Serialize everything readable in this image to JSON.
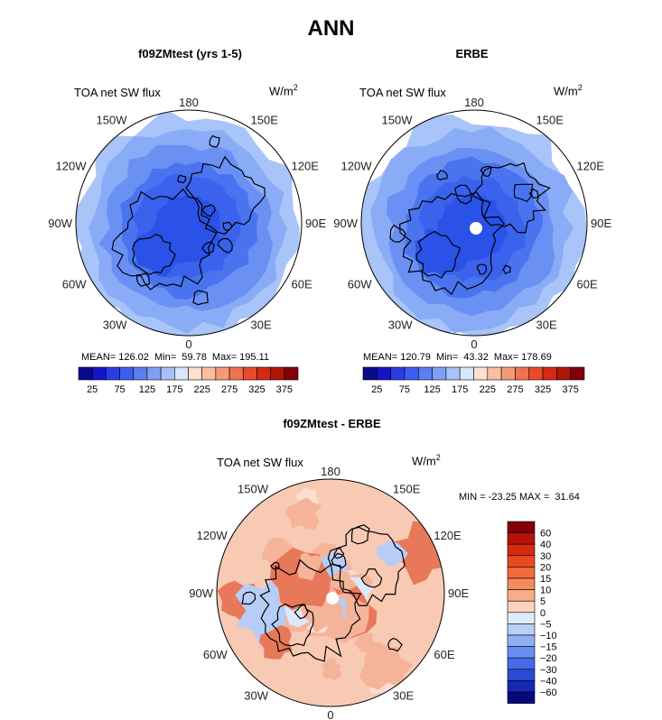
{
  "title": "ANN",
  "panels": [
    {
      "title": "f09ZMtest (yrs 1-5)",
      "variable": "TOA net SW flux",
      "units": "W/m",
      "units_sup": "2",
      "stats": "MEAN= 126.02  Min=  59.78  Max= 195.11"
    },
    {
      "title": "ERBE",
      "variable": "TOA net SW flux",
      "units": "W/m",
      "units_sup": "2",
      "stats": "MEAN= 120.79  Min=  43.32  Max= 178.69"
    },
    {
      "title": "f09ZMtest - ERBE",
      "variable": "TOA net SW flux",
      "units": "W/m",
      "units_sup": "2",
      "stats": "MIN = -23.25 MAX =  31.64"
    }
  ],
  "lon_labels": {
    "top": "180",
    "bottom": "0",
    "left": "90W",
    "right": "90E",
    "ul1": "150W",
    "ul2": "120W",
    "ll1": "60W",
    "ll2": "30W",
    "ur1": "150E",
    "ur2": "120E",
    "lr1": "60E",
    "lr2": "30E"
  },
  "abs_colorbar": {
    "ticks": [
      "25",
      "75",
      "125",
      "175",
      "225",
      "275",
      "325",
      "375"
    ],
    "colors": [
      "#0a0a8c",
      "#1414c8",
      "#2a3ee6",
      "#3c5ef0",
      "#5a7ff2",
      "#7fa0f5",
      "#a7c2f8",
      "#d8e6fb",
      "#fde0cf",
      "#f9bfa0",
      "#f59a78",
      "#f07250",
      "#e84a2a",
      "#d42a12",
      "#b01608",
      "#82000a"
    ]
  },
  "diff_colorbar": {
    "ticks": [
      "60",
      "40",
      "30",
      "20",
      "15",
      "10",
      "5",
      "0",
      "−5",
      "−10",
      "−15",
      "−20",
      "−30",
      "−40",
      "−60"
    ],
    "colors": [
      "#82000a",
      "#b5120a",
      "#d62a10",
      "#ea4a20",
      "#f26a3a",
      "#f58a5e",
      "#f7ad8a",
      "#fbd3bd",
      "#dfeafb",
      "#b8cff8",
      "#8fb0f4",
      "#6a8ff0",
      "#466ae9",
      "#2a4ad8",
      "#1528b0",
      "#08087e"
    ]
  },
  "maps": {
    "abs_palette": [
      "#2a52e8",
      "#3a62ec",
      "#4a74ef",
      "#6a90f3",
      "#8aacf6",
      "#a8c4f9"
    ],
    "diff_palette": [
      "#f5b49a",
      "#f8cab4",
      "#fbe0d2",
      "#dce8fb",
      "#b6cdf7",
      "#e8785a"
    ],
    "pole_fill": "#ffffff"
  }
}
